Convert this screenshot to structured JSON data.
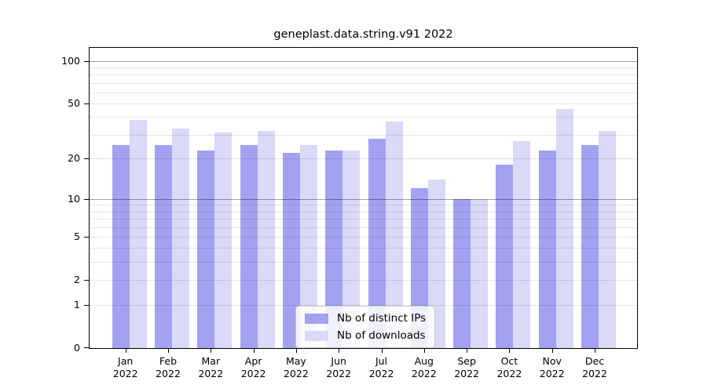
{
  "title": "geneplast.data.string.v91 2022",
  "chart_data": {
    "type": "bar",
    "title": "geneplast.data.string.v91 2022",
    "categories": [
      "Jan 2022",
      "Feb 2022",
      "Mar 2022",
      "Apr 2022",
      "May 2022",
      "Jun 2022",
      "Jul 2022",
      "Aug 2022",
      "Sep 2022",
      "Oct 2022",
      "Nov 2022",
      "Dec 2022"
    ],
    "x_tick_months": [
      "Jan",
      "Feb",
      "Mar",
      "Apr",
      "May",
      "Jun",
      "Jul",
      "Aug",
      "Sep",
      "Oct",
      "Nov",
      "Dec"
    ],
    "x_tick_year": "2022",
    "series": [
      {
        "name": "Nb of distinct IPs",
        "color": "#a2a2f0",
        "values": [
          25,
          25,
          23,
          25,
          22,
          23,
          28,
          12,
          10,
          18,
          23,
          25
        ]
      },
      {
        "name": "Nb of downloads",
        "color": "#d9d9f8",
        "values": [
          38,
          33,
          31,
          32,
          25,
          23,
          37,
          14,
          10,
          27,
          46,
          32
        ]
      }
    ],
    "xlabel": "",
    "ylabel": "",
    "y_axis": {
      "scale": "log1p",
      "tick_values": [
        0,
        1,
        2,
        5,
        10,
        20,
        50,
        100
      ],
      "tick_labels": [
        "0",
        "1",
        "2",
        "5",
        "10",
        "20",
        "50",
        "100"
      ],
      "minor_gridline_values": [
        1,
        2,
        3,
        4,
        5,
        6,
        7,
        8,
        9,
        20,
        30,
        40,
        50,
        60,
        70,
        80,
        90
      ],
      "major_gridline_values": [
        10,
        100
      ],
      "ylim": [
        0,
        110
      ]
    },
    "grid": true,
    "legend_position": "bottom-center"
  }
}
